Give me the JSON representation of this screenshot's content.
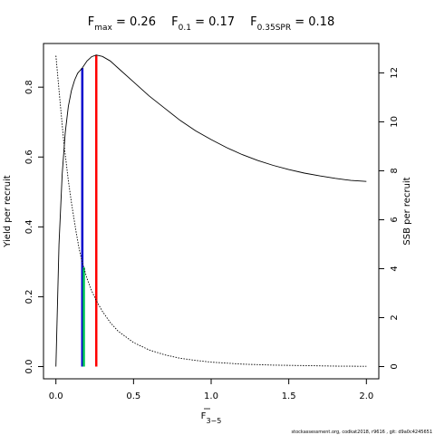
{
  "chart_data": {
    "type": "line",
    "title": {
      "parts": [
        {
          "base": "F",
          "sub": "max",
          "value": " = 0.26"
        },
        {
          "base": "F",
          "sub": "0.1",
          "value": " = 0.17"
        },
        {
          "base": "F",
          "sub": "0.35SPR",
          "value": " = 0.18"
        }
      ]
    },
    "xlabel": {
      "base": "F",
      "sub": "3−5",
      "overline": true
    },
    "ylabel_left": "Yield per recruit",
    "ylabel_right": "SSB per recruit",
    "xlim": [
      -0.08,
      2.08
    ],
    "ylim_left": [
      -0.035,
      0.925
    ],
    "ylim_right": [
      -0.5,
      13.2
    ],
    "x_ticks": [
      0.0,
      0.5,
      1.0,
      1.5,
      2.0
    ],
    "x_tick_labels": [
      "0.0",
      "0.5",
      "1.0",
      "1.5",
      "2.0"
    ],
    "y_ticks_left": [
      0.0,
      0.2,
      0.4,
      0.6,
      0.8
    ],
    "y_tick_labels_left": [
      "0.0",
      "0.2",
      "0.4",
      "0.6",
      "0.8"
    ],
    "y_ticks_right": [
      0,
      2,
      4,
      6,
      8,
      10,
      12
    ],
    "y_tick_labels_right": [
      "0",
      "2",
      "4",
      "6",
      "8",
      "10",
      "12"
    ],
    "series": [
      {
        "axis": "left",
        "style": "solid",
        "color": "#000000",
        "points": [
          [
            0.0,
            0.0
          ],
          [
            0.02,
            0.35
          ],
          [
            0.04,
            0.55
          ],
          [
            0.06,
            0.67
          ],
          [
            0.08,
            0.745
          ],
          [
            0.1,
            0.79
          ],
          [
            0.12,
            0.82
          ],
          [
            0.14,
            0.84
          ],
          [
            0.17,
            0.855
          ],
          [
            0.2,
            0.875
          ],
          [
            0.23,
            0.887
          ],
          [
            0.26,
            0.892
          ],
          [
            0.3,
            0.888
          ],
          [
            0.35,
            0.875
          ],
          [
            0.4,
            0.855
          ],
          [
            0.5,
            0.815
          ],
          [
            0.6,
            0.775
          ],
          [
            0.7,
            0.74
          ],
          [
            0.8,
            0.705
          ],
          [
            0.9,
            0.675
          ],
          [
            1.0,
            0.65
          ],
          [
            1.1,
            0.627
          ],
          [
            1.2,
            0.607
          ],
          [
            1.3,
            0.59
          ],
          [
            1.4,
            0.576
          ],
          [
            1.5,
            0.564
          ],
          [
            1.6,
            0.554
          ],
          [
            1.7,
            0.546
          ],
          [
            1.8,
            0.539
          ],
          [
            1.9,
            0.533
          ],
          [
            2.0,
            0.53
          ]
        ]
      },
      {
        "axis": "right",
        "style": "dotted",
        "color": "#000000",
        "points": [
          [
            0.0,
            12.7
          ],
          [
            0.02,
            11.3
          ],
          [
            0.05,
            9.2
          ],
          [
            0.08,
            7.6
          ],
          [
            0.1,
            6.7
          ],
          [
            0.13,
            5.5
          ],
          [
            0.15,
            4.8
          ],
          [
            0.17,
            4.25
          ],
          [
            0.18,
            4.05
          ],
          [
            0.2,
            3.6
          ],
          [
            0.23,
            3.1
          ],
          [
            0.26,
            2.7
          ],
          [
            0.3,
            2.25
          ],
          [
            0.35,
            1.8
          ],
          [
            0.4,
            1.45
          ],
          [
            0.5,
            0.98
          ],
          [
            0.6,
            0.68
          ],
          [
            0.7,
            0.48
          ],
          [
            0.8,
            0.34
          ],
          [
            0.9,
            0.25
          ],
          [
            1.0,
            0.18
          ],
          [
            1.2,
            0.1
          ],
          [
            1.4,
            0.06
          ],
          [
            1.6,
            0.04
          ],
          [
            1.8,
            0.02
          ],
          [
            2.0,
            0.01
          ]
        ]
      }
    ],
    "reference_lines": [
      {
        "name": "Fmax",
        "x": 0.26,
        "color": "#ff0000",
        "axis": "left",
        "y_top": 0.892
      },
      {
        "name": "F0.1",
        "x": 0.17,
        "color": "#0000cd",
        "axis": "left",
        "y_top": 0.855
      },
      {
        "name": "F0.35SPR",
        "x": 0.18,
        "color": "#00c853",
        "axis": "right",
        "y_top": 4.05
      }
    ],
    "footer": "stockassessment.org, codkat2018, r9616 , git: d9a0c4245651"
  }
}
